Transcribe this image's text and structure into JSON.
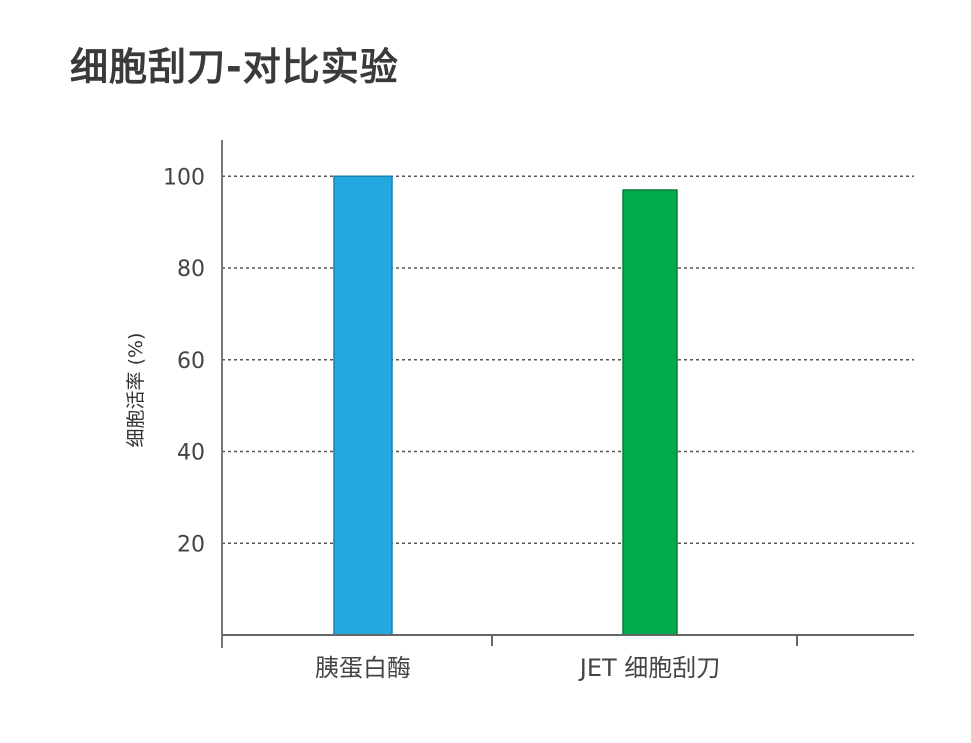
{
  "chart_data": {
    "type": "bar",
    "title": "细胞刮刀-对比实验",
    "xlabel": "",
    "ylabel": "细胞活率 (%)",
    "categories": [
      "胰蛋白酶",
      "JET 细胞刮刀"
    ],
    "values": [
      100,
      97
    ],
    "colors": [
      "#24a8e0",
      "#00ac4e"
    ],
    "ylim": [
      0,
      108
    ],
    "yticks": [
      20,
      40,
      60,
      80,
      100
    ],
    "grid": true,
    "grid_style": "dotted"
  }
}
